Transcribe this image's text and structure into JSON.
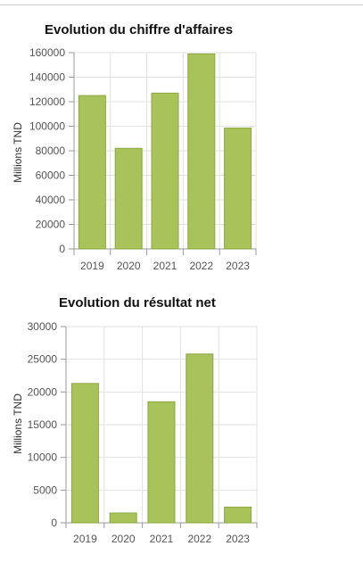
{
  "chart_data": [
    {
      "type": "bar",
      "title": "Evolution du chiffre d'affaires",
      "ylabel": "Millions TND",
      "xlabel": "",
      "categories": [
        "2019",
        "2020",
        "2021",
        "2022",
        "2023"
      ],
      "values": [
        125000,
        82000,
        127000,
        159000,
        98500
      ],
      "ylim": [
        0,
        160000
      ],
      "yticks": [
        "0",
        "20000",
        "40000",
        "60000",
        "80000",
        "100000",
        "120000",
        "140000",
        "160000"
      ],
      "grid": true,
      "bar_color": "#a8c35a",
      "bar_edge_color": "#8aa83c"
    },
    {
      "type": "bar",
      "title": "Evolution du résultat net",
      "ylabel": "Millions TND",
      "xlabel": "",
      "categories": [
        "2019",
        "2020",
        "2021",
        "2022",
        "2023"
      ],
      "values": [
        21300,
        1500,
        18500,
        25800,
        2400
      ],
      "ylim": [
        0,
        30000
      ],
      "yticks": [
        "0",
        "5000",
        "10000",
        "15000",
        "20000",
        "25000",
        "30000"
      ],
      "grid": true,
      "bar_color": "#a8c35a",
      "bar_edge_color": "#8aa83c"
    }
  ]
}
